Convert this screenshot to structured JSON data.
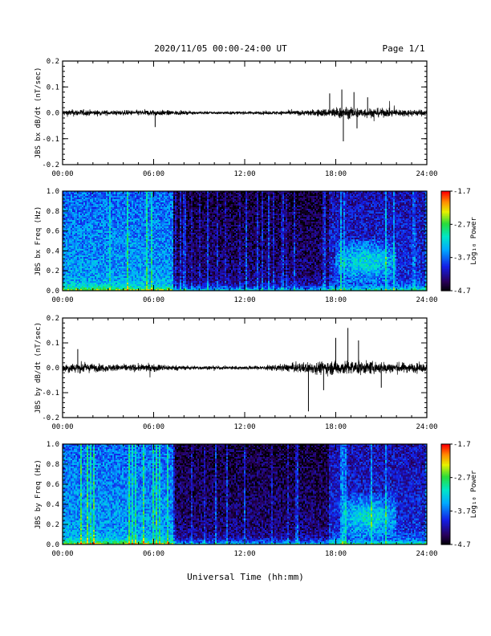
{
  "header": {
    "title": "2020/11/05  00:00-24:00 UT",
    "page": "Page 1/1"
  },
  "xaxis_label": "Universal Time (hh:mm)",
  "chart_data": [
    {
      "type": "line",
      "ylabel": "JBS bx dB/dt (nT/sec)",
      "xlim": [
        "00:00",
        "24:00"
      ],
      "ylim": [
        -0.2,
        0.2
      ],
      "xticks": [
        "00:00",
        "06:00",
        "12:00",
        "18:00",
        "24:00"
      ],
      "yticks": [
        "-0.2",
        "-0.1",
        "0.0",
        "0.1",
        "0.2"
      ],
      "envelope": {
        "hours": [
          0,
          1,
          2,
          3,
          4,
          5,
          6,
          7,
          8,
          9,
          10,
          11,
          12,
          13,
          14,
          15,
          16,
          17,
          18,
          19,
          20,
          21,
          22,
          23,
          24
        ],
        "amplitude": [
          0.025,
          0.028,
          0.022,
          0.02,
          0.02,
          0.022,
          0.025,
          0.02,
          0.015,
          0.012,
          0.012,
          0.012,
          0.012,
          0.013,
          0.015,
          0.018,
          0.022,
          0.03,
          0.045,
          0.045,
          0.04,
          0.035,
          0.03,
          0.028,
          0.025
        ]
      },
      "spikes": [
        {
          "hour": 17.6,
          "value": 0.075
        },
        {
          "hour": 18.4,
          "value": 0.09
        },
        {
          "hour": 18.5,
          "value": -0.11
        },
        {
          "hour": 19.2,
          "value": 0.08
        },
        {
          "hour": 19.4,
          "value": -0.06
        },
        {
          "hour": 20.1,
          "value": 0.06
        },
        {
          "hour": 6.1,
          "value": -0.055
        }
      ]
    },
    {
      "type": "heatmap",
      "ylabel": "JBS bx Freq (Hz)",
      "xlim": [
        "00:00",
        "24:00"
      ],
      "ylim": [
        0.0,
        1.0
      ],
      "xticks": [
        "00:00",
        "06:00",
        "12:00",
        "18:00",
        "24:00"
      ],
      "yticks": [
        "0.0",
        "0.2",
        "0.4",
        "0.6",
        "0.8",
        "1.0"
      ],
      "colorbar": {
        "label": "Log₁₀ Power",
        "range": [
          -4.7,
          -1.7
        ],
        "ticks": [
          "-1.7",
          "-2.7",
          "-3.7",
          "-4.7"
        ]
      },
      "quiet_interval_hours": [
        7.3,
        24.0
      ],
      "enhanced_band": {
        "hours": [
          18.0,
          22.0
        ],
        "freq_hz": [
          0.2,
          0.4
        ]
      }
    },
    {
      "type": "line",
      "ylabel": "JBS by dB/dt (nT/sec)",
      "xlim": [
        "00:00",
        "24:00"
      ],
      "ylim": [
        -0.2,
        0.2
      ],
      "xticks": [
        "00:00",
        "06:00",
        "12:00",
        "18:00",
        "24:00"
      ],
      "yticks": [
        "-0.2",
        "-0.1",
        "0.0",
        "0.1",
        "0.2"
      ],
      "envelope": {
        "hours": [
          0,
          1,
          2,
          3,
          4,
          5,
          6,
          7,
          8,
          9,
          10,
          11,
          12,
          13,
          14,
          15,
          16,
          17,
          18,
          19,
          20,
          21,
          22,
          23,
          24
        ],
        "amplitude": [
          0.035,
          0.045,
          0.035,
          0.03,
          0.03,
          0.03,
          0.032,
          0.025,
          0.018,
          0.015,
          0.015,
          0.015,
          0.015,
          0.018,
          0.025,
          0.035,
          0.045,
          0.055,
          0.06,
          0.06,
          0.055,
          0.05,
          0.045,
          0.04,
          0.035
        ]
      },
      "spikes": [
        {
          "hour": 16.2,
          "value": -0.175
        },
        {
          "hour": 18.0,
          "value": 0.12
        },
        {
          "hour": 18.8,
          "value": 0.16
        },
        {
          "hour": 19.5,
          "value": 0.11
        },
        {
          "hour": 17.2,
          "value": -0.09
        },
        {
          "hour": 21.0,
          "value": -0.08
        },
        {
          "hour": 1.0,
          "value": 0.075
        }
      ]
    },
    {
      "type": "heatmap",
      "ylabel": "JBS by Freq (Hz)",
      "xlim": [
        "00:00",
        "24:00"
      ],
      "ylim": [
        0.0,
        1.0
      ],
      "xticks": [
        "00:00",
        "06:00",
        "12:00",
        "18:00",
        "24:00"
      ],
      "yticks": [
        "0.0",
        "0.2",
        "0.4",
        "0.6",
        "0.8",
        "1.0"
      ],
      "colorbar": {
        "label": "Log₁₀ Power",
        "range": [
          -4.7,
          -1.7
        ],
        "ticks": [
          "-1.7",
          "-2.7",
          "-3.7",
          "-4.7"
        ]
      },
      "quiet_interval_hours": [
        7.3,
        24.0
      ],
      "enhanced_band": {
        "hours": [
          18.5,
          22.0
        ],
        "freq_hz": [
          0.15,
          0.4
        ]
      }
    }
  ]
}
